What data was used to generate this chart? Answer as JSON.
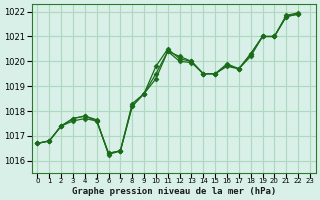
{
  "title": "Graphe pression niveau de la mer (hPa)",
  "background_color": "#d8f0e8",
  "grid_color": "#b0d8c0",
  "line_color": "#1a6b1a",
  "marker_color": "#1a6b1a",
  "xlim": [
    -0.5,
    23.5
  ],
  "ylim": [
    1015.5,
    1022.3
  ],
  "yticks": [
    1016,
    1017,
    1018,
    1019,
    1020,
    1021,
    1022
  ],
  "xtick_labels": [
    "0",
    "1",
    "2",
    "3",
    "4",
    "5",
    "6",
    "7",
    "8",
    "9",
    "10",
    "11",
    "12",
    "13",
    "14",
    "15",
    "16",
    "17",
    "18",
    "19",
    "20",
    "21",
    "22",
    "23"
  ],
  "series": [
    [
      1016.7,
      1016.8,
      1017.4,
      1017.6,
      1017.7,
      1017.6,
      1016.3,
      1016.4,
      1018.3,
      1018.7,
      1019.8,
      1020.5,
      1020.1,
      1020.0,
      1019.5,
      1019.5,
      1019.8,
      1019.7,
      1020.3,
      1021.0,
      1021.0,
      1021.8,
      1021.9
    ],
    [
      1016.7,
      1016.8,
      1017.4,
      1017.7,
      1017.8,
      1017.6,
      1016.3,
      1016.4,
      1018.2,
      1018.7,
      1019.5,
      1020.4,
      1020.2,
      1020.0,
      1019.5,
      1019.5,
      1019.9,
      1019.7,
      1020.3,
      1021.0,
      1021.0,
      1021.85,
      1021.95
    ],
    [
      1016.7,
      1016.8,
      1017.4,
      1017.7,
      1017.8,
      1017.65,
      1016.25,
      1016.4,
      1018.2,
      1018.7,
      1019.3,
      1020.4,
      1020.0,
      1019.95,
      1019.5,
      1019.5,
      1019.85,
      1019.7,
      1020.2,
      1021.0,
      1021.0,
      1021.8,
      1021.9
    ]
  ],
  "x_series": [
    [
      0,
      1,
      2,
      3,
      4,
      5,
      6,
      7,
      8,
      9,
      10,
      11,
      12,
      13,
      14,
      15,
      16,
      17,
      18,
      19,
      20,
      21,
      22
    ],
    [
      0,
      1,
      2,
      3,
      4,
      5,
      6,
      7,
      8,
      9,
      10,
      11,
      12,
      13,
      14,
      15,
      16,
      17,
      18,
      19,
      20,
      21,
      22
    ],
    [
      0,
      1,
      2,
      3,
      4,
      5,
      6,
      7,
      8,
      9,
      10,
      11,
      12,
      13,
      14,
      15,
      16,
      17,
      18,
      19,
      20,
      21,
      22
    ]
  ]
}
